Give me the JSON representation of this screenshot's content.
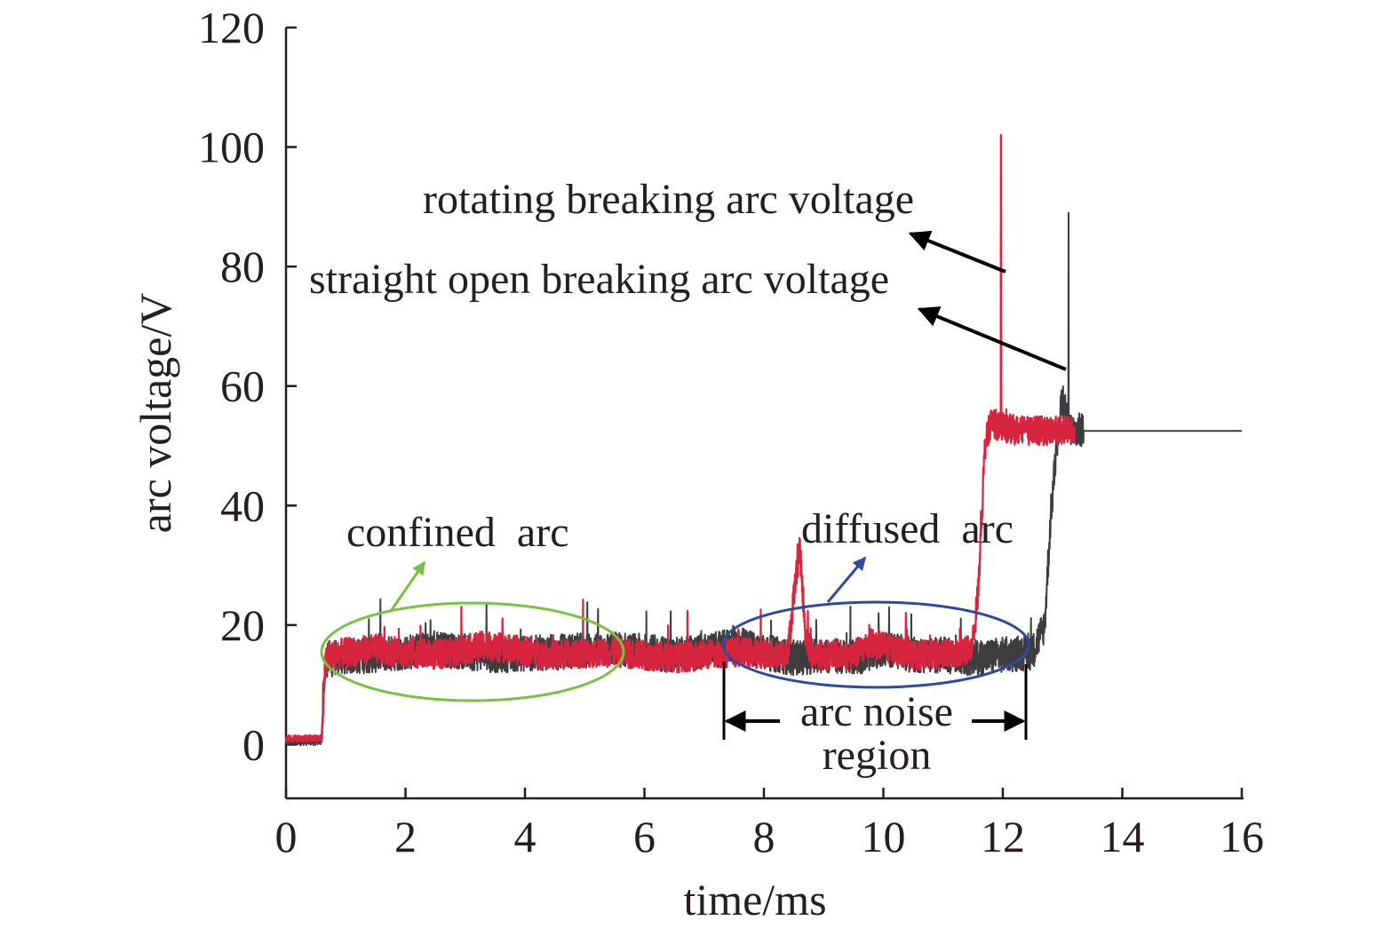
{
  "colors": {
    "straight_series": "#3d3d40",
    "rotating_series": "#d7243f",
    "confined_ellipse": "#7ac043",
    "diffused_ellipse": "#2e4a9e",
    "axis": "#231f20",
    "arrow": "#000000"
  },
  "chart_data": {
    "type": "line",
    "xlabel": "time/ms",
    "ylabel": "arc voltage/V",
    "xlim": [
      0,
      16
    ],
    "ylim": [
      -9,
      120
    ],
    "xticks": [
      0,
      2,
      4,
      6,
      8,
      10,
      12,
      14,
      16
    ],
    "yticks": [
      0,
      20,
      40,
      60,
      80,
      100,
      120
    ],
    "grid": false,
    "series": [
      {
        "label": "straight open breaking arc voltage",
        "x": [
          0,
          0.6,
          0.62,
          0.65,
          0.7,
          0.75,
          0.8,
          1.5,
          2.5,
          3.5,
          4.5,
          5.5,
          6.5,
          7.3,
          7.5,
          8.0,
          8.5,
          9.0,
          9.5,
          10.0,
          10.5,
          11.0,
          11.5,
          12.0,
          12.5,
          12.7,
          12.8,
          12.9,
          13.0,
          13.1,
          13.2,
          13.3,
          16.0
        ],
        "y": [
          0.5,
          0.5,
          8,
          13,
          14,
          14,
          14.5,
          15,
          16,
          15,
          15.5,
          16,
          15,
          16,
          17,
          15.5,
          14.5,
          15,
          14.5,
          16,
          15,
          15,
          14.5,
          15,
          15.5,
          20,
          38,
          50,
          58,
          53,
          52.5,
          52.5,
          52.5
        ],
        "peak": [
          13.1,
          89
        ],
        "noise_amplitude": 3
      },
      {
        "label": "rotating breaking arc voltage",
        "x": [
          0,
          0.6,
          0.65,
          0.7,
          1.5,
          2.5,
          3.3,
          4.5,
          5.5,
          6.5,
          7.5,
          8.4,
          8.5,
          8.6,
          8.7,
          8.8,
          9.5,
          9.8,
          10.5,
          11.0,
          11.5,
          11.6,
          11.7,
          11.8,
          12.0,
          12.3,
          12.6,
          13.0,
          13.2
        ],
        "y": [
          1,
          1,
          13,
          15,
          16,
          15,
          16.5,
          15,
          15.5,
          14.5,
          15.5,
          15,
          25,
          33,
          18,
          15,
          15,
          17,
          15,
          15,
          16,
          28,
          50,
          54,
          53,
          52.5,
          52.5,
          52.5,
          52.5
        ],
        "peak": [
          11.97,
          102
        ],
        "noise_amplitude": 2.5
      }
    ],
    "annotations": [
      {
        "text": "rotating breaking arc voltage",
        "type": "arrow-label"
      },
      {
        "text": "straight open breaking arc voltage",
        "type": "arrow-label"
      },
      {
        "text": "confined  arc",
        "type": "ellipse-label"
      },
      {
        "text": "diffused  arc",
        "type": "ellipse-label"
      },
      {
        "text": "arc noise",
        "type": "bracket-label"
      },
      {
        "text": "region",
        "type": "bracket-label"
      }
    ]
  }
}
